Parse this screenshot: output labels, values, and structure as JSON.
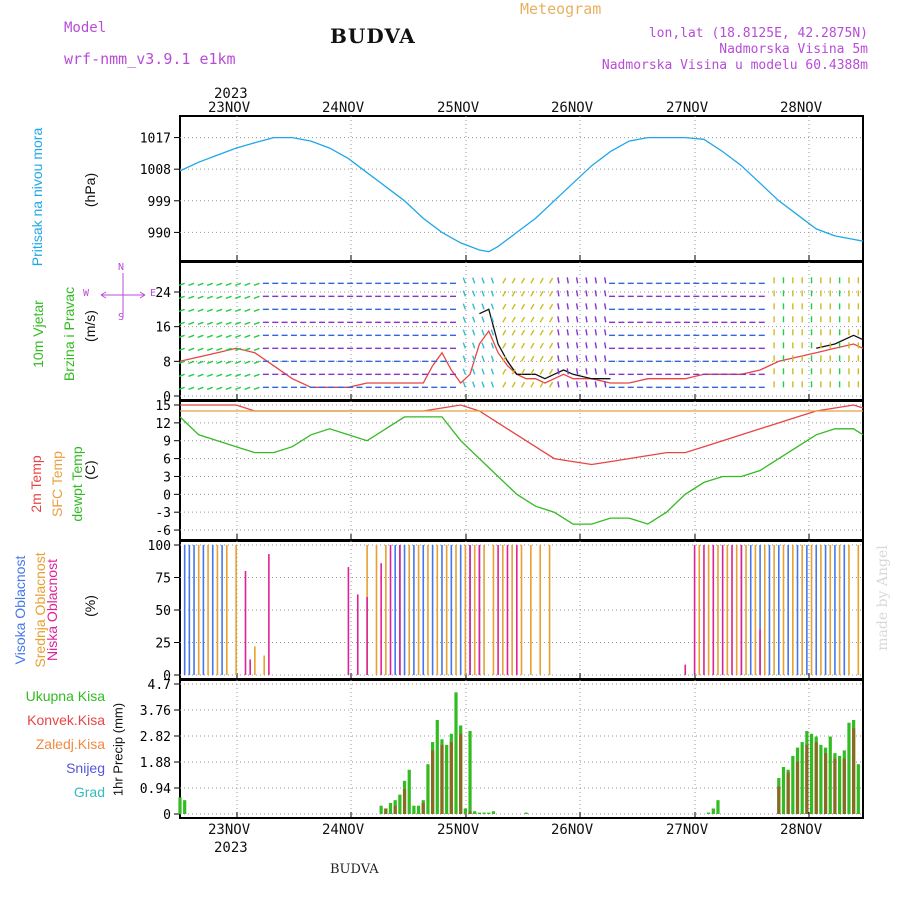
{
  "header": {
    "model_label": "Model",
    "model_name": "wrf-nmm_v3.9.1 e1km",
    "title": "BUDVA",
    "meteogram": "Meteogram",
    "lonlat": "lon,lat (18.8125E, 42.2875N)",
    "altitude": "Nadmorska Visina 5m",
    "model_altitude": "Nadmorska Visina u modelu 60.4388m",
    "watermark": "made by Angel",
    "footer": "BUDVA",
    "colors": {
      "model": "#b84cd8",
      "lonlat": "#b84cd8",
      "meteogram": "#e8b060"
    }
  },
  "time_axis": {
    "year": "2023",
    "days": [
      "23NOV",
      "24NOV",
      "25NOV",
      "26NOV",
      "27NOV",
      "28NOV"
    ]
  },
  "panels": {
    "pressure": {
      "label_blue": "Pritisak na nivou mora",
      "unit": "(hPa)"
    },
    "wind": {
      "label_green1": "10m Vjetar",
      "label_green2": "Brzina i Pravac",
      "unit": "(m/s)",
      "compass": {
        "n": "N",
        "e": "E",
        "s": "S",
        "w": "W"
      }
    },
    "temp": {
      "label_red": "2m Temp",
      "label_orange": "SFC Temp",
      "label_green": "dewpt Temp",
      "unit": "(C)"
    },
    "cloud": {
      "label_blue": "Visoka Oblacnost",
      "label_orange": "Srednja Oblacnost",
      "label_magenta": "Niska Oblacnost",
      "unit": "(%)"
    },
    "precip": {
      "label": "1hr Precip (mm)",
      "legend": [
        {
          "text": "Ukupna Kisa",
          "color": "#33bb22"
        },
        {
          "text": "Konvek.Kisa",
          "color": "#e84444"
        },
        {
          "text": "Zaledj.Kisa",
          "color": "#f08a40"
        },
        {
          "text": "Snijeg",
          "color": "#5555dd"
        },
        {
          "text": "Grad",
          "color": "#33bbbb"
        }
      ]
    }
  },
  "chart_data": [
    {
      "type": "line",
      "name": "pressure",
      "ylim": [
        983,
        1022
      ],
      "yticks": [
        990,
        999,
        1008,
        1017
      ],
      "x": [
        0,
        4,
        8,
        12,
        16,
        20,
        24,
        28,
        32,
        36,
        40,
        44,
        48,
        52,
        56,
        60,
        64,
        66,
        68,
        70,
        72,
        76,
        80,
        84,
        88,
        92,
        96,
        100,
        104,
        108,
        112,
        116,
        120,
        124,
        128,
        132,
        136,
        140,
        144,
        146
      ],
      "series": [
        {
          "color": "#1fa7e8",
          "values": [
            1007.5,
            1010,
            1012,
            1014,
            1015.5,
            1017,
            1017,
            1016,
            1014,
            1011,
            1007,
            1003,
            999,
            994,
            990,
            987,
            985,
            984.5,
            986,
            988,
            990,
            994,
            999,
            1004,
            1009,
            1013,
            1016,
            1017,
            1017,
            1017,
            1016.5,
            1013,
            1009,
            1004,
            999,
            995,
            991,
            989,
            988,
            987.5
          ]
        }
      ]
    },
    {
      "type": "line",
      "name": "wind",
      "ylim": [
        0,
        30
      ],
      "yticks": [
        0,
        8,
        16,
        24
      ],
      "x": [
        0,
        4,
        8,
        12,
        16,
        20,
        24,
        28,
        32,
        36,
        40,
        44,
        48,
        52,
        54,
        56,
        58,
        60,
        62,
        64,
        66,
        68,
        70,
        72,
        74,
        76,
        78,
        80,
        82,
        84,
        88,
        92,
        96,
        100,
        104,
        108,
        112,
        116,
        120,
        124,
        128,
        132,
        136,
        140,
        144,
        146
      ],
      "series": [
        {
          "color": "#e84444",
          "values": [
            8,
            9,
            10,
            11,
            10,
            7,
            4,
            2,
            2,
            2,
            3,
            3,
            3,
            3,
            7,
            10,
            6,
            3,
            5,
            12,
            15,
            10,
            7,
            5,
            4,
            4,
            3,
            4,
            5,
            4,
            4,
            3,
            3,
            4,
            4,
            4,
            5,
            5,
            5,
            6,
            8,
            9,
            10,
            11,
            12,
            11
          ]
        },
        {
          "color": "#111111",
          "values": [
            null,
            null,
            null,
            null,
            null,
            null,
            null,
            null,
            null,
            null,
            null,
            null,
            null,
            null,
            null,
            null,
            null,
            null,
            null,
            19,
            20,
            12,
            8,
            5,
            5,
            5,
            4,
            5,
            6,
            5,
            4,
            4,
            null,
            null,
            null,
            null,
            null,
            null,
            null,
            null,
            null,
            null,
            11,
            12,
            14,
            13
          ]
        }
      ]
    },
    {
      "type": "line",
      "name": "temperature",
      "ylim": [
        -7,
        15
      ],
      "yticks": [
        -6,
        -3,
        0,
        3,
        6,
        9,
        12,
        15
      ],
      "x": [
        0,
        4,
        8,
        12,
        16,
        20,
        24,
        28,
        32,
        36,
        40,
        44,
        48,
        52,
        56,
        60,
        64,
        68,
        72,
        76,
        80,
        84,
        88,
        92,
        96,
        100,
        104,
        108,
        112,
        116,
        120,
        124,
        128,
        132,
        136,
        140,
        144,
        146
      ],
      "series": [
        {
          "color": "#e84444",
          "values": [
            15,
            15,
            15,
            15,
            14,
            14,
            14,
            14,
            14,
            14,
            14,
            14,
            14,
            14,
            14.5,
            15,
            14,
            12,
            10,
            8,
            6,
            5.5,
            5,
            5.5,
            6,
            6.5,
            7,
            7,
            8,
            9,
            10,
            11,
            12,
            13,
            14,
            14.5,
            15,
            14.5
          ]
        },
        {
          "color": "#e8a040",
          "values": [
            14,
            14,
            14,
            14,
            14,
            14,
            14,
            14,
            14,
            14,
            14,
            14,
            14,
            14,
            14,
            14,
            14,
            14,
            14,
            14,
            14,
            14,
            14,
            14,
            14,
            14,
            14,
            14,
            14,
            14,
            14,
            14,
            14,
            14,
            14,
            14,
            14,
            14
          ]
        },
        {
          "color": "#33bb22",
          "values": [
            13,
            10,
            9,
            8,
            7,
            7,
            8,
            10,
            11,
            10,
            9,
            11,
            13,
            13,
            13,
            9,
            6,
            3,
            0,
            -2,
            -3,
            -5,
            -5,
            -4,
            -4,
            -5,
            -3,
            0,
            2,
            3,
            3,
            4,
            6,
            8,
            10,
            11,
            11,
            10
          ]
        }
      ]
    },
    {
      "type": "bar",
      "name": "cloud",
      "ylim": [
        0,
        100
      ],
      "yticks": [
        0,
        25,
        50,
        75,
        100
      ],
      "series": [
        {
          "name": "high",
          "color": "#4477ee",
          "x": [
            1,
            2,
            3,
            5,
            7,
            9,
            46,
            47,
            48,
            50,
            52,
            54,
            56,
            58,
            60,
            62,
            64,
            120,
            122,
            124,
            126,
            128,
            130,
            132,
            134,
            136,
            138,
            140,
            142
          ],
          "values": [
            100,
            100,
            100,
            100,
            100,
            100,
            100,
            100,
            100,
            100,
            100,
            100,
            100,
            100,
            100,
            100,
            100,
            100,
            100,
            100,
            100,
            100,
            100,
            100,
            100,
            100,
            100,
            100,
            100
          ]
        },
        {
          "name": "mid",
          "color": "#e8a030",
          "x": [
            4,
            6,
            8,
            10,
            12,
            16,
            18,
            40,
            42,
            44,
            49,
            51,
            53,
            55,
            57,
            59,
            61,
            63,
            65,
            67,
            69,
            71,
            73,
            75,
            77,
            79,
            111,
            113,
            115,
            117,
            119,
            121,
            123,
            125,
            127,
            129,
            131,
            133,
            135,
            137,
            139,
            141,
            143,
            145
          ],
          "values": [
            100,
            100,
            100,
            100,
            100,
            22,
            15,
            100,
            100,
            100,
            100,
            100,
            100,
            100,
            100,
            100,
            100,
            100,
            100,
            100,
            100,
            100,
            100,
            100,
            100,
            100,
            100,
            100,
            100,
            100,
            100,
            100,
            100,
            100,
            100,
            100,
            100,
            100,
            100,
            100,
            100,
            100,
            100,
            100
          ]
        },
        {
          "name": "low",
          "color": "#dd2299",
          "x": [
            14,
            15,
            19,
            36,
            38,
            40,
            43,
            45,
            47,
            62,
            64,
            68,
            70,
            72,
            108,
            110,
            112,
            114,
            116,
            118,
            120,
            124
          ],
          "values": [
            80,
            12,
            93,
            83,
            62,
            60,
            86,
            100,
            100,
            100,
            100,
            100,
            100,
            100,
            8,
            100,
            100,
            100,
            100,
            100,
            100,
            35
          ]
        }
      ]
    },
    {
      "type": "bar",
      "name": "precip",
      "ylim": [
        0,
        4.7
      ],
      "yticks": [
        0,
        0.94,
        1.88,
        2.82,
        3.76,
        4.7
      ],
      "series": [
        {
          "name": "total",
          "color": "#33bb22",
          "x": [
            0,
            1,
            43,
            44,
            45,
            46,
            47,
            48,
            49,
            50,
            51,
            52,
            53,
            54,
            55,
            56,
            57,
            58,
            59,
            60,
            61,
            62,
            63,
            64,
            65,
            66,
            67,
            74,
            113,
            114,
            115,
            128,
            129,
            130,
            131,
            132,
            133,
            134,
            135,
            136,
            137,
            138,
            139,
            140,
            141,
            142,
            143,
            144,
            145
          ],
          "values": [
            0.6,
            0.5,
            0.3,
            0.2,
            0.4,
            0.5,
            0.7,
            1.2,
            1.6,
            0.3,
            0.3,
            0.5,
            1.8,
            2.6,
            3.4,
            2.7,
            2.5,
            2.9,
            4.4,
            3.2,
            0.2,
            3.0,
            0.1,
            0.05,
            0.05,
            0.05,
            0.1,
            0.05,
            0.05,
            0.2,
            0.5,
            1.3,
            1.7,
            1.6,
            2.1,
            2.4,
            2.6,
            3.0,
            2.9,
            2.8,
            2.5,
            2.4,
            2.8,
            2.2,
            2.1,
            2.3,
            3.3,
            3.4,
            1.8
          ]
        },
        {
          "name": "convective",
          "color": "#8a6a22",
          "x": [
            44,
            46,
            48,
            52,
            54,
            56,
            58,
            60,
            62,
            128,
            130,
            132,
            134,
            136,
            138,
            140,
            142,
            144
          ],
          "values": [
            0.2,
            0.3,
            0.9,
            0.4,
            2.3,
            2.5,
            2.6,
            2.9,
            0.1,
            1.0,
            1.5,
            1.9,
            2.5,
            2.6,
            2.2,
            2.0,
            2.0,
            3.1
          ]
        }
      ]
    }
  ]
}
